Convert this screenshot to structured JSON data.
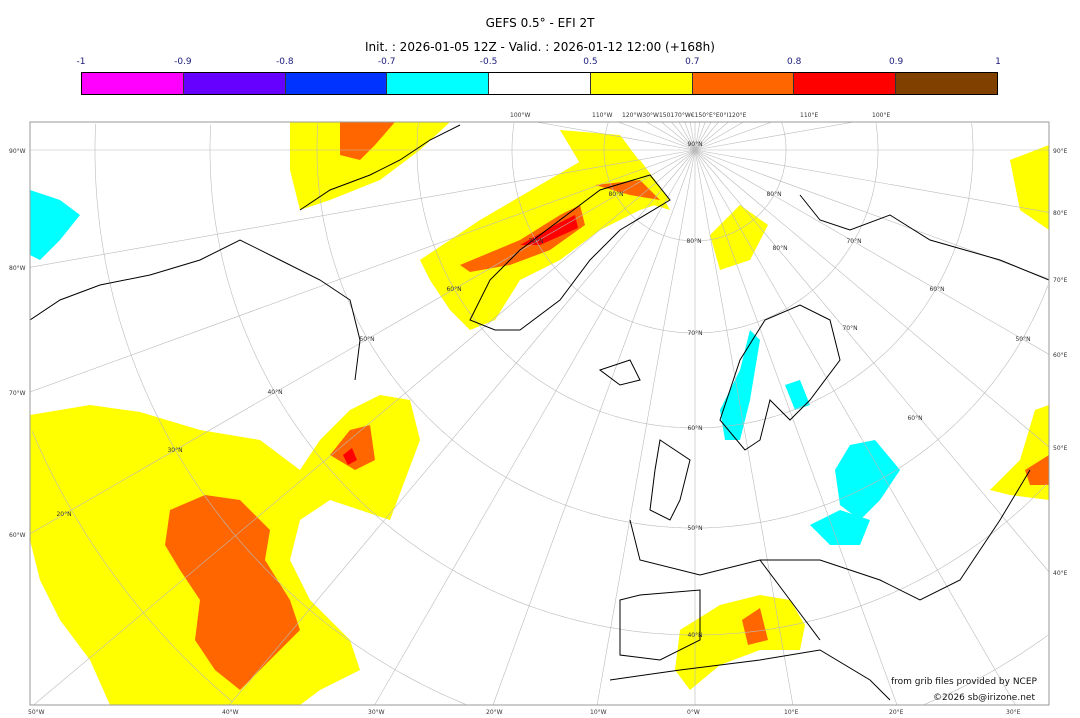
{
  "title": "GEFS 0.5° - EFI 2T",
  "subtitle": "Init. : 2026-01-05 12Z - Valid. : 2026-01-12 12:00 (+168h)",
  "colorbar": {
    "labels": [
      "-1",
      "-0.9",
      "-0.8",
      "-0.7",
      "-0.5",
      "0.5",
      "0.7",
      "0.8",
      "0.9",
      "1"
    ],
    "colors": [
      "#ff00ff",
      "#6600ff",
      "#0033ff",
      "#00ffff",
      "#ffffff",
      "#ffff00",
      "#ff6600",
      "#ff0000",
      "#804000"
    ]
  },
  "axes": {
    "left": [
      "90°W",
      "80°W",
      "70°W",
      "60°W"
    ],
    "right": [
      "90°E",
      "80°E",
      "70°E",
      "60°E",
      "50°E",
      "40°E"
    ],
    "bottom": [
      "50°W",
      "40°W",
      "30°W",
      "20°W",
      "10°W",
      "0°W",
      "10°E",
      "20°E",
      "30°E"
    ],
    "top": [
      "100°W",
      "110°W",
      "120°W30°W150170°W€150°E°E0°I120°E",
      "110°E",
      "100°E"
    ]
  },
  "grid_labels": [
    "90°N",
    "80°N",
    "70°N",
    "60°N",
    "50°N",
    "40°N",
    "30°N",
    "20°N",
    "60°N",
    "70°N",
    "80°N",
    "80°N",
    "70°N",
    "60°N",
    "50°N",
    "40°N",
    "80°N",
    "70°N",
    "60°N",
    "50°N"
  ],
  "credits": {
    "source": "from grib files provided by NCEP",
    "copyright": "©2026 sb@irizone.net"
  }
}
